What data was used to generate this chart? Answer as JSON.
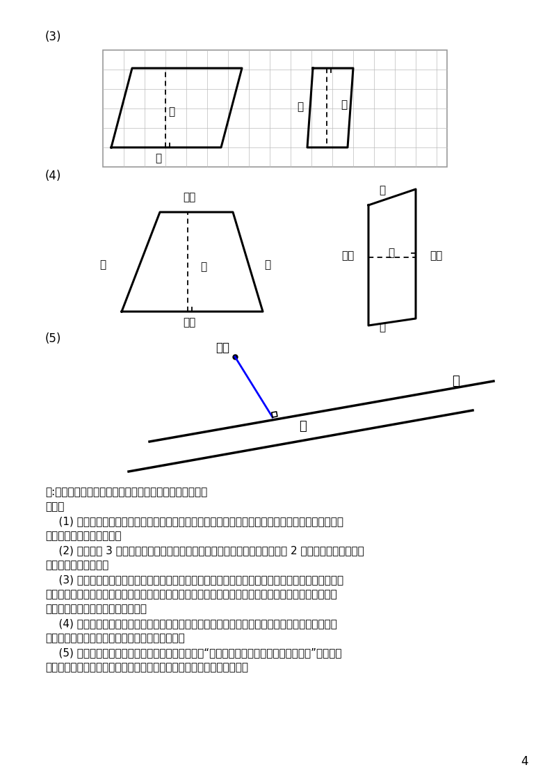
{
  "bg_color": "#ffffff",
  "text_color": "#000000",
  "label3": "(3)",
  "label4": "(4)",
  "label5": "(5)",
  "answer_line1": "答:沈图中的蓝色线段修一条水泥路，就能使修的路最近。",
  "answer_line2": "解析：",
  "answer_line3": "    (1) 利用三角板在边（三角板的一条直角边）线重合的基础上平移找点，然后沿另一条直角边画出一",
  "answer_line4": "条直线，最后画直角符号。",
  "answer_line5": "    (2) 先画一条 3 厘米的线段，以这条线段的两个端点为垂足分别做垂线，截取 2 厘米，连接两个端点，",
  "answer_line6": "即可成规定的长方形。",
  "answer_line7": "    (3) 根据平行四边形的特征，对边平行且相等进行作图即可。在平行四边形中，从一条边上的任意一",
  "answer_line8": "点向对边作垂线，这点与垂足间的距离叫作以这条边为底的平行四边形的高，习惯上作平行四边形的高时",
  "answer_line9": "都从对边一个顶点出发作底的垂线。",
  "answer_line10": "    (4) 梯形平行的一组对边分别是上底和下底，不平行的这组对边是腰；从上底边上的任意一点向下",
  "answer_line11": "底引一条垂线，这点与垂足间的距离叫梯形的高。",
  "answer_line12": "    (5) 把李村看作一个点，公路看作一条直线，根据“点到直线的所有线段中，垂线段最短”的性质，",
  "answer_line13": "过李村向公路画一条垂线，沿李村与垂足之间的线段修一条水泥路即可。",
  "page_number": "4"
}
